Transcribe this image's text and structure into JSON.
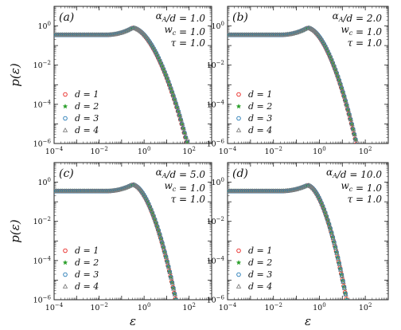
{
  "figure": {
    "xlabel": "ε",
    "ylabel": "p(ε)"
  },
  "legend": [
    "d = 1",
    "d = 2",
    "d = 3",
    "d = 4"
  ],
  "series_style": [
    {
      "marker": "circle",
      "color": "#e8211d"
    },
    {
      "marker": "star",
      "color": "#2ca02c"
    },
    {
      "marker": "circle",
      "color": "#1f77b4"
    },
    {
      "marker": "triangle",
      "color": "#7f7f7f"
    }
  ],
  "chart_data": [
    {
      "type": "scatter",
      "panel_label": "(a)",
      "params": [
        "α_A/d = 1.0",
        "w_c = 1.0",
        "τ = 1.0"
      ],
      "xscale": "log",
      "yscale": "log",
      "xlim": [
        0.0001,
        1000
      ],
      "ylim": [
        1e-06,
        10
      ],
      "xticks": [
        "10^-4",
        "10^-2",
        "10^0",
        "10^2"
      ],
      "yticks": [
        "10^0",
        "10^-2",
        "10^-4",
        "10^-6"
      ],
      "xlabel": "",
      "ylabel": "p(ε)",
      "legend_position": "lower-left",
      "peak": {
        "x": 0.3,
        "y": 0.8
      },
      "plateau": 0.35,
      "tail_end": {
        "x": 80,
        "y": 1e-06
      },
      "series": [
        {
          "name": "d = 1"
        },
        {
          "name": "d = 2"
        },
        {
          "name": "d = 3"
        },
        {
          "name": "d = 4"
        }
      ]
    },
    {
      "type": "scatter",
      "panel_label": "(b)",
      "params": [
        "α_A/d = 2.0",
        "w_c = 1.0",
        "τ = 1.0"
      ],
      "xscale": "log",
      "yscale": "log",
      "xlim": [
        0.0001,
        1000
      ],
      "ylim": [
        1e-06,
        10
      ],
      "xticks": [
        "10^-4",
        "10^-2",
        "10^0",
        "10^2"
      ],
      "yticks": [
        "10^0",
        "10^-2",
        "10^-4",
        "10^-6"
      ],
      "xlabel": "",
      "ylabel": "",
      "legend_position": "lower-left",
      "peak": {
        "x": 0.3,
        "y": 0.8
      },
      "plateau": 0.35,
      "tail_end": {
        "x": 40,
        "y": 1e-06
      },
      "series": [
        {
          "name": "d = 1"
        },
        {
          "name": "d = 2"
        },
        {
          "name": "d = 3"
        },
        {
          "name": "d = 4"
        }
      ]
    },
    {
      "type": "scatter",
      "panel_label": "(c)",
      "params": [
        "α_A/d = 5.0",
        "w_c = 1.0",
        "τ = 1.0"
      ],
      "xscale": "log",
      "yscale": "log",
      "xlim": [
        0.0001,
        1000
      ],
      "ylim": [
        1e-06,
        10
      ],
      "xticks": [
        "10^-4",
        "10^-2",
        "10^0",
        "10^2"
      ],
      "yticks": [
        "10^0",
        "10^-2",
        "10^-4",
        "10^-6"
      ],
      "xlabel": "ε",
      "ylabel": "p(ε)",
      "legend_position": "lower-left",
      "peak": {
        "x": 0.3,
        "y": 0.75
      },
      "plateau": 0.35,
      "tail_end": {
        "x": 25,
        "y": 1e-06
      },
      "series": [
        {
          "name": "d = 1"
        },
        {
          "name": "d = 2"
        },
        {
          "name": "d = 3"
        },
        {
          "name": "d = 4"
        }
      ]
    },
    {
      "type": "scatter",
      "panel_label": "(d)",
      "params": [
        "α_A/d = 10.0",
        "w_c = 1.0",
        "τ = 1.0"
      ],
      "xscale": "log",
      "yscale": "log",
      "xlim": [
        0.0001,
        1000
      ],
      "ylim": [
        1e-06,
        10
      ],
      "xticks": [
        "10^-4",
        "10^-2",
        "10^0",
        "10^2"
      ],
      "yticks": [
        "10^0",
        "10^-2",
        "10^-4",
        "10^-6"
      ],
      "xlabel": "ε",
      "ylabel": "",
      "legend_position": "lower-left",
      "peak": {
        "x": 0.3,
        "y": 0.7
      },
      "plateau": 0.35,
      "tail_end": {
        "x": 15,
        "y": 1e-06
      },
      "series": [
        {
          "name": "d = 1"
        },
        {
          "name": "d = 2"
        },
        {
          "name": "d = 3"
        },
        {
          "name": "d = 4"
        }
      ]
    }
  ]
}
